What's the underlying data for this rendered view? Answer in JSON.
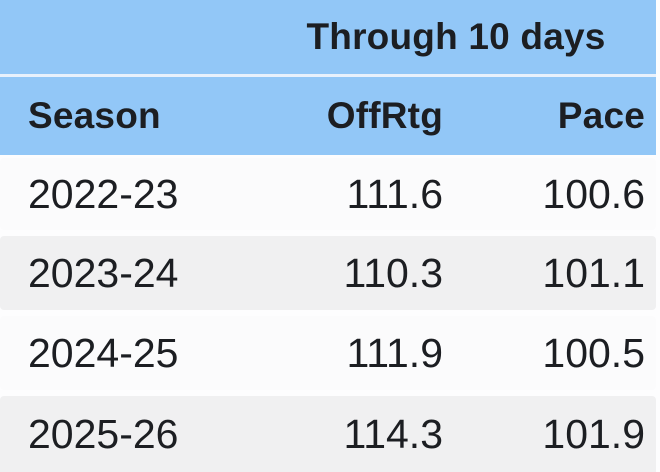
{
  "table": {
    "span_header": "Through 10 days",
    "columns": [
      {
        "key": "season",
        "label": "Season",
        "align": "left"
      },
      {
        "key": "offrtg",
        "label": "OffRtg",
        "align": "right"
      },
      {
        "key": "pace",
        "label": "Pace",
        "align": "right"
      }
    ],
    "rows": [
      {
        "season": "2022-23",
        "offrtg": "111.6",
        "pace": "100.6"
      },
      {
        "season": "2023-24",
        "offrtg": "110.3",
        "pace": "101.1"
      },
      {
        "season": "2024-25",
        "offrtg": "111.9",
        "pace": "100.5"
      },
      {
        "season": "2025-26",
        "offrtg": "114.3",
        "pace": "101.9"
      }
    ]
  },
  "colors": {
    "header_blue": "#92c7f7",
    "header_divider": "#e8f1fc",
    "row_light": "#fbfbfc",
    "row_gray": "#f0f0f1",
    "page_bg": "#fdfdfe",
    "text": "#1c1e22"
  },
  "chart_data": {
    "type": "table",
    "title": "Through 10 days",
    "columns": [
      "Season",
      "OffRtg",
      "Pace"
    ],
    "rows": [
      [
        "2022-23",
        111.6,
        100.6
      ],
      [
        "2023-24",
        110.3,
        101.1
      ],
      [
        "2024-25",
        111.9,
        100.5
      ],
      [
        "2025-26",
        114.3,
        101.9
      ]
    ],
    "layout_hints": {
      "span_header_covers": [
        "OffRtg",
        "Pace"
      ],
      "row_striping": "alternating light/gray",
      "header_style": "blue band, bold text"
    }
  }
}
